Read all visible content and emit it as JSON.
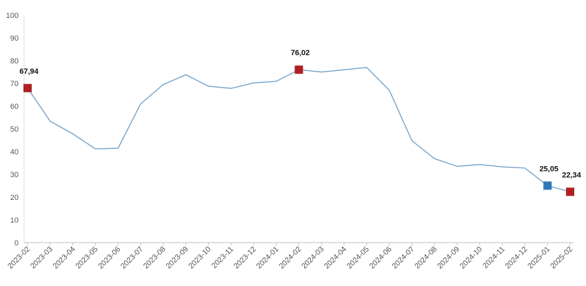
{
  "chart_data": {
    "type": "line",
    "title": "",
    "xlabel": "",
    "ylabel": "",
    "ylim": [
      0,
      100
    ],
    "yticks": [
      0,
      10,
      20,
      30,
      40,
      50,
      60,
      70,
      80,
      90,
      100
    ],
    "grid": false,
    "legend": "none",
    "categories": [
      "2023-02",
      "2023-03",
      "2023-04",
      "2023-05",
      "2023-06",
      "2023-07",
      "2023-08",
      "2023-09",
      "2023-10",
      "2023-11",
      "2023-12",
      "2024-01",
      "2024-02",
      "2024-03",
      "2024-04",
      "2024-05",
      "2024-06",
      "2024-07",
      "2024-08",
      "2024-09",
      "2024-10",
      "2024-11",
      "2024-12",
      "2025-01",
      "2025-02"
    ],
    "series": [
      {
        "color": "#7ba7cc",
        "values": [
          67.94,
          53.4,
          47.8,
          41.2,
          41.5,
          61.0,
          69.5,
          73.8,
          68.8,
          67.8,
          70.2,
          70.9,
          76.02,
          75.0,
          76.0,
          77.0,
          67.0,
          44.8,
          36.9,
          33.5,
          34.3,
          33.3,
          32.8,
          25.05,
          22.34
        ]
      }
    ],
    "highlights": [
      {
        "index": 0,
        "label": "67,94",
        "color": "#b02020"
      },
      {
        "index": 12,
        "label": "76,02",
        "color": "#b02020"
      },
      {
        "index": 23,
        "label": "25,05",
        "color": "#2f78b8"
      },
      {
        "index": 24,
        "label": "22,34",
        "color": "#b02020"
      }
    ]
  }
}
